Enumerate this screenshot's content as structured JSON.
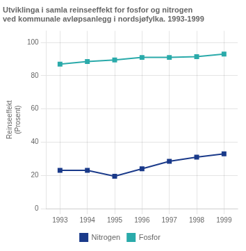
{
  "chart_data": {
    "type": "line",
    "title": [
      "Utviklinga i samla reinseeffekt for fosfor og nitrogen",
      "ved kommunale avløpsanlegg i nordsjøfylka. 1993-1999"
    ],
    "ylabel": [
      "Reinseeffekt",
      "(Prosent)"
    ],
    "x": [
      1993,
      1994,
      1995,
      1996,
      1997,
      1998,
      1999
    ],
    "series": [
      {
        "name": "Nitrogen",
        "color": "#1a3a8a",
        "marker": "square",
        "values": [
          23,
          23,
          19.5,
          24,
          28.5,
          31,
          33
        ]
      },
      {
        "name": "Fosfor",
        "color": "#2aaaaa",
        "marker": "square",
        "values": [
          87,
          88.5,
          89.5,
          91,
          91,
          91.5,
          93
        ]
      }
    ],
    "xlim": [
      1992.5,
      1999.5
    ],
    "xticks": [
      1993,
      1994,
      1995,
      1996,
      1997,
      1998,
      1999
    ],
    "ylim": [
      0,
      107
    ],
    "yticks": [
      0,
      20,
      40,
      60,
      80,
      100
    ],
    "grid": true,
    "legend": "bottom"
  }
}
